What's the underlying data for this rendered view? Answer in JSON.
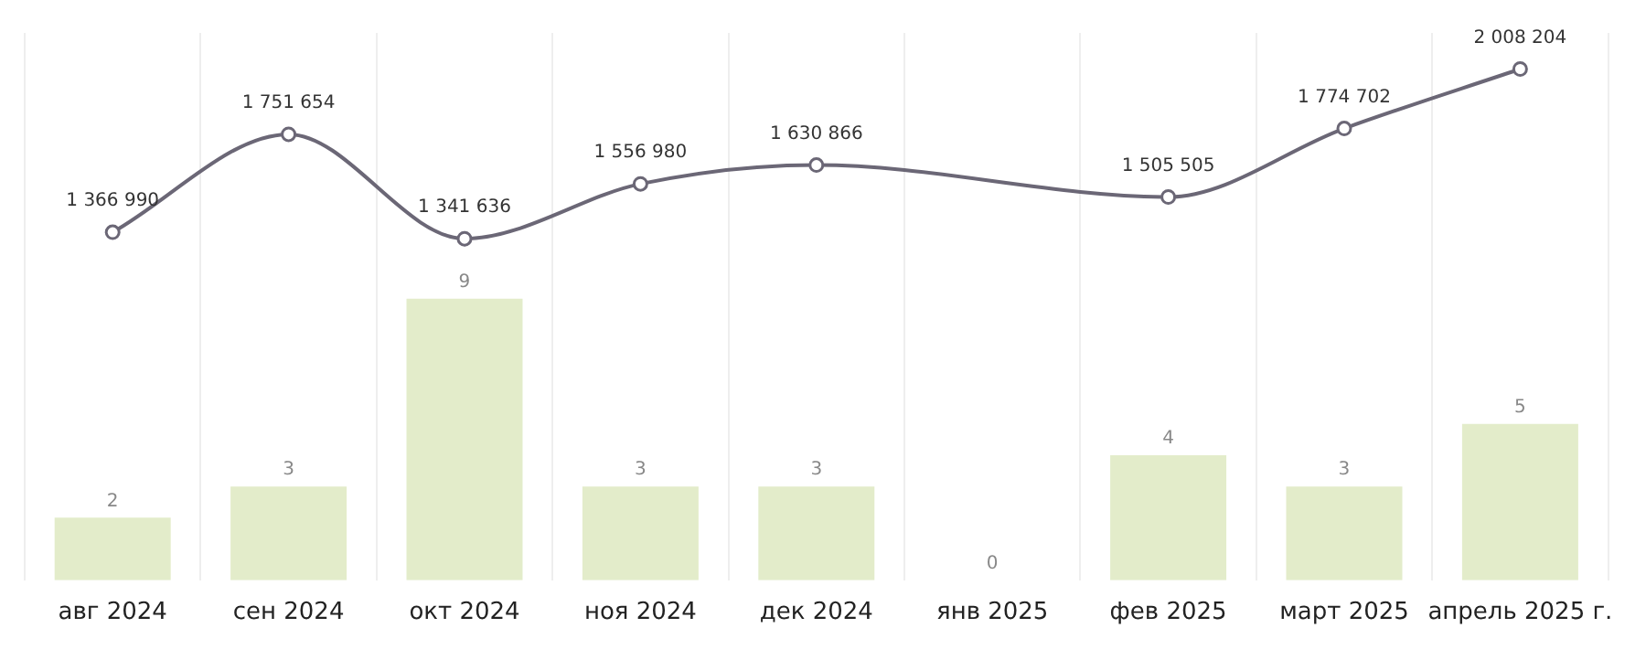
{
  "chart_data": {
    "type": "line",
    "ylim": [
      0,
      17.5
    ],
    "y2lim": [
      0,
      2150000
    ],
    "tick_labels": "x",
    "categories": [
      "авг 2024",
      "сен 2024",
      "окт 2024",
      "ноя 2024",
      "дек 2024",
      "янв 2025",
      "фев 2025",
      "март 2025",
      "апрель 2025 г."
    ],
    "series": [
      {
        "type": "bar",
        "color": "#e3ecca",
        "values": [
          2,
          3,
          9,
          3,
          3,
          0,
          4,
          3,
          5
        ]
      },
      {
        "axis": "y2",
        "color": "#6b6776",
        "values": [
          1366990,
          1751654,
          1341636,
          1556980,
          1630866,
          null,
          1505505,
          1774702,
          2008204
        ]
      }
    ],
    "data_labels": true,
    "grid": "x",
    "legend": false,
    "marker": "circle"
  }
}
